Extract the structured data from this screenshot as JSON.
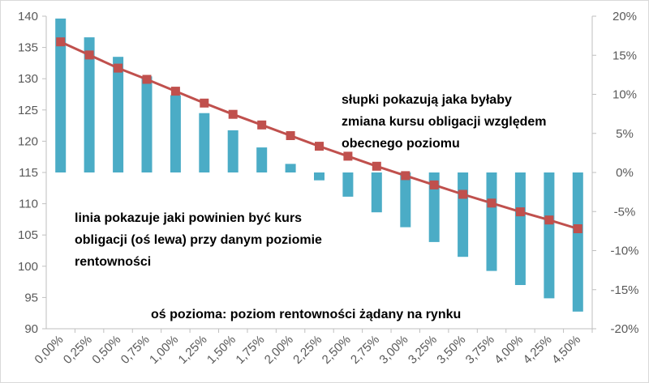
{
  "chart_data": {
    "type": "bar+line",
    "categories": [
      "0,00%",
      "0,25%",
      "0,50%",
      "0,75%",
      "1,00%",
      "1,25%",
      "1,50%",
      "1,75%",
      "2,00%",
      "2,25%",
      "2,50%",
      "2,75%",
      "3,00%",
      "3,25%",
      "3,50%",
      "3,75%",
      "4,00%",
      "4,25%",
      "4,50%"
    ],
    "series": [
      {
        "type": "bar",
        "axis": "right",
        "unit": "%",
        "values": [
          19.7,
          17.3,
          14.8,
          12.3,
          9.9,
          7.6,
          5.4,
          3.2,
          1.1,
          -1.0,
          -3.1,
          -5.1,
          -7.0,
          -8.9,
          -10.8,
          -12.6,
          -14.4,
          -16.1,
          -17.8
        ]
      },
      {
        "type": "line",
        "axis": "left",
        "values": [
          135.9,
          133.8,
          131.7,
          129.9,
          128.0,
          126.1,
          124.3,
          122.6,
          120.9,
          119.2,
          117.6,
          116.0,
          114.5,
          113.0,
          111.5,
          110.1,
          108.7,
          107.4,
          106.0
        ]
      }
    ],
    "y_left": {
      "min": 90,
      "max": 140,
      "step": 5,
      "ticks": [
        "90",
        "95",
        "100",
        "105",
        "110",
        "115",
        "120",
        "125",
        "130",
        "135",
        "140"
      ]
    },
    "y_right": {
      "min": -20,
      "max": 20,
      "step": 5,
      "ticks": [
        "-20%",
        "-15%",
        "-10%",
        "-5%",
        "0%",
        "5%",
        "10%",
        "15%",
        "20%"
      ]
    },
    "grid": false,
    "legend": "none",
    "colors": {
      "bar": "#4BACC6",
      "line": "#C0504D",
      "marker": "#C0504D",
      "axis": "#bfbfbf",
      "text": "#595959"
    }
  },
  "annotations": {
    "bars_note": [
      "słupki pokazują jaka byłaby",
      "zmiana kursu obligacji względem",
      "obecnego poziomu"
    ],
    "line_note": [
      "linia pokazuje jaki powinien być kurs",
      "obligacji (oś lewa) przy danym poziomie",
      "rentowności"
    ],
    "axis_note": "oś pozioma: poziom rentowności żądany na rynku"
  }
}
